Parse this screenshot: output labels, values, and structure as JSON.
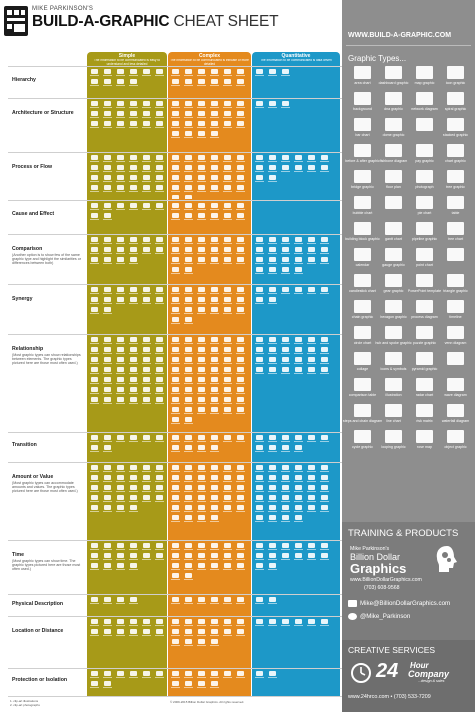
{
  "title": {
    "pre": "MIKE PARKINSON'S",
    "main_bold": "BUILD-A-GRAPHIC",
    "main_light": "CHEAT SHEET"
  },
  "columns": [
    {
      "key": "simple",
      "label": "Simple",
      "sub": "The information to be communicated is easy to understand and less detailed",
      "color": "#a79a18"
    },
    {
      "key": "complex",
      "label": "Complex",
      "sub": "The information to be communicated is intricate or more detailed",
      "color": "#e48a1e"
    },
    {
      "key": "quant",
      "label": "Quantitative",
      "sub": "The information to be communicated is data driven",
      "color": "#1d98c8"
    }
  ],
  "rows": [
    {
      "label": "Hierarchy",
      "note": ""
    },
    {
      "label": "Architecture or Structure",
      "note": ""
    },
    {
      "label": "Process or Flow",
      "note": ""
    },
    {
      "label": "Cause and Effect",
      "note": ""
    },
    {
      "label": "Comparison",
      "note": "(Another option is to show few of the same graphic type and highlight the similarities or differences between both)"
    },
    {
      "label": "Synergy",
      "note": ""
    },
    {
      "label": "Relationship",
      "note": "(Most graphic types can show relationships between elements. The graphic types pictured here are those most often used.)"
    },
    {
      "label": "Transition",
      "note": ""
    },
    {
      "label": "Amount or Value",
      "note": "(Most graphic types can accommodate amounts and values. The graphic types pictured here are those most often used.)"
    },
    {
      "label": "Time",
      "note": "(Most graphic types can show time. The graphic types pictured here are those most often used.)"
    },
    {
      "label": "Physical Description",
      "note": ""
    },
    {
      "label": "Location or Distance",
      "note": ""
    },
    {
      "label": "Protection or Isolation",
      "note": ""
    }
  ],
  "footer": {
    "left": "1. clip-art illustrations\n2. clip-art photographs",
    "copy": "© 2009-2015 Billion Dollar Graphics. All rights reserved."
  },
  "panel": {
    "url": "WWW.BUILD-A-GRAPHIC.COM",
    "graphic_types_heading": "Graphic Types...",
    "graphic_types": [
      "area chart",
      "dashboard graphic",
      "map graphic",
      "icon graphic",
      "background",
      "dna graphic",
      "network diagram",
      "spiral graphic",
      "bar chart",
      "dome graphic",
      "",
      "stacked graphic",
      "before & after graphic",
      "fishbone diagram",
      "pay graphic",
      "chart graphic",
      "bridge graphic",
      "floor plan",
      "photograph",
      "tree graphic",
      "bubble chart",
      "",
      "pie chart",
      "table",
      "building block graphic",
      "gantt chart",
      "pipeline graphic",
      "tree chart",
      "calendar",
      "gauge graphic",
      "point chart",
      "",
      "candlestick chart",
      "gear graphic",
      "PowerPoint template",
      "triangle graphic",
      "chain graphic",
      "hexagon graphic",
      "process diagram",
      "timeline",
      "circle chart",
      "hub and spoke graphic",
      "puzzle graphic",
      "venn diagram",
      "collage",
      "icons & symbols",
      "pyramid graphic",
      "",
      "comparison table",
      "illustration",
      "radar chart",
      "wave diagram",
      "steps and chain diagram",
      "line chart",
      "risk matrix",
      "waterfall diagram",
      "cycle graphic",
      "looping graphic",
      "rose map",
      "object graphic"
    ],
    "training": {
      "heading": "TRAINING & PRODUCTS",
      "bdg_pre": "Mike Parkinson's",
      "bdg_1": "Billion Dollar",
      "bdg_2": "Graphics",
      "url": "www.BillionDollarGraphics.com",
      "phone": "(703) 608-9568",
      "email": "Mike@BillionDollarGraphics.com",
      "twitter": "@Mike_Parkinson"
    },
    "creative": {
      "heading": "CREATIVE SERVICES",
      "num": "24",
      "hour": "Hour",
      "company": "Company",
      "tag": "...design & sales",
      "contact": "www.24hrco.com • (703) 533-7209"
    }
  }
}
